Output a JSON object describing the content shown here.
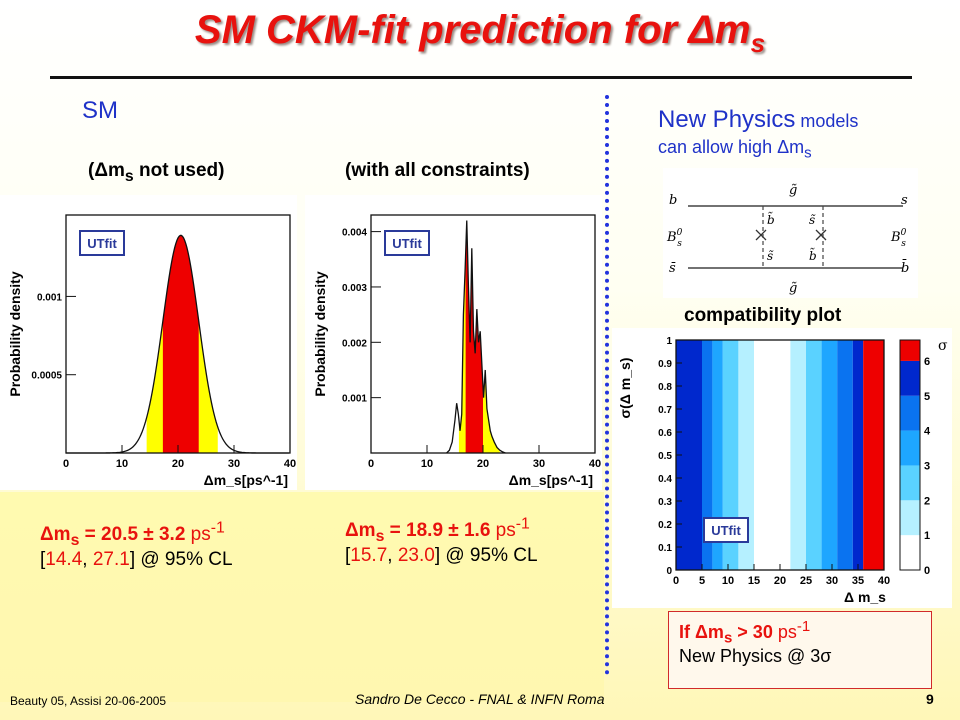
{
  "slide": {
    "title": "SM CKM-fit prediction for Δm",
    "title_sub": "s",
    "sm_label": "SM",
    "left_caption": {
      "prefix": "(Δm",
      "sub": "s",
      "suffix": " not used)"
    },
    "right_caption": "(with all constraints)",
    "np": {
      "line1_a": "New Physics",
      "line1_b": " models",
      "line2": "can allow high Δm",
      "line2_sub": "s"
    },
    "compat_label": "compatibility plot",
    "result_left": {
      "l1_a": "Δm",
      "l1_sub": "s",
      "l1_b": " = 20.5 ± 3.2",
      "l1_unit": " ps",
      "l1_exp": "-1",
      "l2_open": "[",
      "l2_lo": "14.4",
      "l2_comma": ", ",
      "l2_hi": "27.1",
      "l2_rest": "] @ 95% CL"
    },
    "result_right": {
      "l1_a": "Δm",
      "l1_sub": "s",
      "l1_b": " = 18.9 ± 1.6",
      "l1_unit": " ps",
      "l1_exp": "-1",
      "l2_open": "[",
      "l2_lo": "15.7",
      "l2_comma": ", ",
      "l2_hi": "23.0",
      "l2_rest": "] @ 95% CL"
    },
    "if_box": {
      "l1_a": "If Δm",
      "l1_sub": "s",
      "l1_b": " > 30",
      "l1_unit": " ps",
      "l1_exp": "-1",
      "l2": "New Physics @ 3σ"
    },
    "footer": {
      "left": "Beauty 05, Assisi 20-06-2005",
      "center": "Sandro De Cecco - FNAL & INFN Roma",
      "page": "9"
    },
    "utfit_logo": "UTfit",
    "feynman": {
      "top_left": "b",
      "top_right": "s",
      "mid_left": "B",
      "mid_left_sup": "0",
      "mid_left_sub": "s",
      "mid_right": "B",
      "mid_right_sup": "0",
      "mid_right_sub": "s",
      "bot_left": "s̄",
      "bot_right": "b̄",
      "gluino": "g̃",
      "sbottom": "b̃",
      "sstrange": "s̃"
    }
  },
  "colors": {
    "title": "#e8120e",
    "blue_text": "#1f32c8",
    "fill_red": "#ee0000",
    "fill_yellow": "#ffff00",
    "line": "#111111"
  },
  "chart_data": [
    {
      "type": "area",
      "title": "",
      "ylabel": "Probability density",
      "xlabel": "Δm_s[ps^-1]",
      "xlim": [
        0,
        40
      ],
      "yticks": [
        "0.0005",
        "0.001"
      ],
      "xticks": [
        "0",
        "10",
        "20",
        "30",
        "40"
      ],
      "curve": {
        "kind": "gaussian",
        "mean": 20.5,
        "sigma": 3.2,
        "peak": 0.00139
      },
      "red_region": [
        17.3,
        23.7
      ],
      "yellow_region": [
        14.4,
        27.1
      ]
    },
    {
      "type": "area",
      "title": "",
      "ylabel": "Probability density",
      "xlabel": "Δm_s[ps^-1]",
      "xlim": [
        0,
        40
      ],
      "yticks": [
        "0.001",
        "0.002",
        "0.003",
        "0.004"
      ],
      "xticks": [
        "0",
        "10",
        "20",
        "30",
        "40"
      ],
      "x": [
        13.5,
        14,
        14.5,
        15,
        15.3,
        15.6,
        15.9,
        16.2,
        16.5,
        16.8,
        17.1,
        17.4,
        17.7,
        18.0,
        18.3,
        18.6,
        18.9,
        19.2,
        19.5,
        19.8,
        20.1,
        20.4,
        20.7,
        21.0,
        21.3,
        21.6,
        22.0,
        22.5,
        23.0,
        23.5,
        24.0
      ],
      "y": [
        0,
        5e-05,
        0.0002,
        0.0006,
        0.0009,
        0.0007,
        0.0004,
        0.0007,
        0.0025,
        0.0033,
        0.0042,
        0.003,
        0.002,
        0.0037,
        0.0022,
        0.0018,
        0.0026,
        0.002,
        0.0022,
        0.0016,
        0.001,
        0.0015,
        0.0008,
        0.0006,
        0.0004,
        0.0003,
        0.0002,
        0.0001,
        5e-05,
        2e-05,
        0
      ],
      "red_region": [
        16.9,
        20.0
      ],
      "yellow_region": [
        15.7,
        23.0
      ]
    },
    {
      "type": "heatmap",
      "title": "",
      "xlabel": "Δ m_s",
      "ylabel": "σ(Δ m_s)",
      "xlim": [
        0,
        40
      ],
      "ylim": [
        0,
        1
      ],
      "xticks": [
        "0",
        "5",
        "10",
        "15",
        "20",
        "25",
        "30",
        "35",
        "40"
      ],
      "yticks": [
        "0",
        "0.1",
        "0.2",
        "0.3",
        "0.4",
        "0.5",
        "0.6",
        "0.7",
        "0.8",
        "0.9",
        "1"
      ],
      "zlabel": "σ",
      "zticks": [
        "0",
        "1",
        "2",
        "3",
        "4",
        "5",
        "6"
      ],
      "bands_x": [
        [
          0,
          5,
          5
        ],
        [
          5,
          7,
          4
        ],
        [
          7,
          9,
          3
        ],
        [
          9,
          12,
          2
        ],
        [
          12,
          15,
          1
        ],
        [
          15,
          22,
          0
        ],
        [
          22,
          25,
          1
        ],
        [
          25,
          28,
          2
        ],
        [
          28,
          31,
          3
        ],
        [
          31,
          34,
          4
        ],
        [
          34,
          36,
          5
        ],
        [
          36,
          40,
          6
        ]
      ],
      "palette": [
        "#ffffff",
        "#b5f0ff",
        "#5ad2ff",
        "#1ea6ff",
        "#0a73f0",
        "#0028cd",
        "#ee0000"
      ]
    }
  ]
}
